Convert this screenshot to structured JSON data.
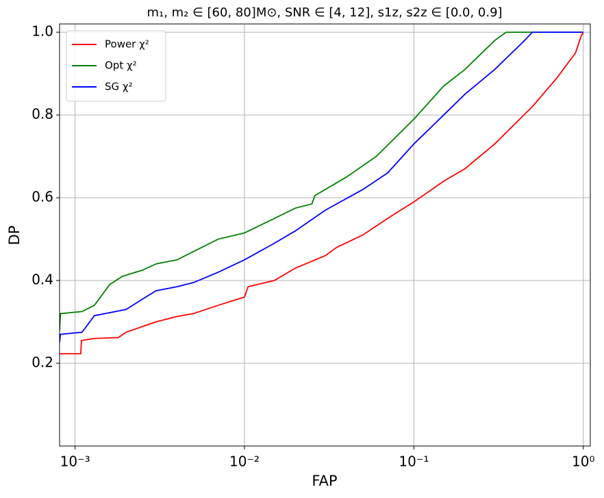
{
  "chart_data": {
    "type": "line",
    "title": "m₁, m₂ ∈ [60, 80]M⊙,  SNR ∈ [4, 12],  s1z, s2z ∈ [0.0, 0.9]",
    "x_label": "FAP",
    "y_label": "DP",
    "xscale": "log",
    "grid": true,
    "legend": "upper left",
    "xlim": [
      0.00081,
      1.1
    ],
    "ylim": [
      0,
      1.02
    ],
    "xticks": [
      {
        "value": 0.001,
        "label": "10⁻³"
      },
      {
        "value": 0.01,
        "label": "10⁻²"
      },
      {
        "value": 0.1,
        "label": "10⁻¹"
      },
      {
        "value": 1,
        "label": "10⁰"
      }
    ],
    "yticks": [
      0.2,
      0.4,
      0.6,
      0.8,
      {
        "value": 1,
        "label": "1.0"
      }
    ],
    "series": [
      {
        "name": "Power χ²",
        "color": "#ff0000",
        "x": [
          0.00081,
          0.00108,
          0.00109,
          0.0013,
          0.0018,
          0.002,
          0.003,
          0.004,
          0.005,
          0.007,
          0.01,
          0.0105,
          0.015,
          0.02,
          0.03,
          0.035,
          0.05,
          0.07,
          0.1,
          0.15,
          0.2,
          0.3,
          0.5,
          0.7,
          0.9,
          0.97,
          1.0
        ],
        "values": [
          0.223,
          0.223,
          0.255,
          0.26,
          0.262,
          0.275,
          0.3,
          0.313,
          0.32,
          0.34,
          0.36,
          0.385,
          0.4,
          0.43,
          0.46,
          0.48,
          0.51,
          0.55,
          0.59,
          0.64,
          0.67,
          0.73,
          0.82,
          0.89,
          0.95,
          0.99,
          1.0
        ]
      },
      {
        "name": "Opt χ²",
        "color": "#008000",
        "x": [
          0.00081,
          0.00082,
          0.0011,
          0.0013,
          0.0016,
          0.0019,
          0.0025,
          0.003,
          0.004,
          0.005,
          0.007,
          0.01,
          0.015,
          0.02,
          0.025,
          0.026,
          0.04,
          0.06,
          0.1,
          0.15,
          0.2,
          0.3,
          0.35,
          1.0
        ],
        "values": [
          0.28,
          0.32,
          0.325,
          0.34,
          0.39,
          0.41,
          0.425,
          0.44,
          0.45,
          0.47,
          0.5,
          0.515,
          0.55,
          0.575,
          0.585,
          0.605,
          0.65,
          0.7,
          0.79,
          0.87,
          0.91,
          0.98,
          1.0,
          1.0
        ]
      },
      {
        "name": "SG χ²",
        "color": "#0000ff",
        "x": [
          0.00081,
          0.00082,
          0.0011,
          0.0013,
          0.002,
          0.0025,
          0.003,
          0.004,
          0.005,
          0.007,
          0.01,
          0.015,
          0.02,
          0.03,
          0.05,
          0.07,
          0.1,
          0.15,
          0.2,
          0.3,
          0.45,
          0.5,
          1.0
        ],
        "values": [
          0.25,
          0.27,
          0.275,
          0.315,
          0.33,
          0.355,
          0.375,
          0.385,
          0.395,
          0.42,
          0.45,
          0.49,
          0.52,
          0.57,
          0.62,
          0.66,
          0.73,
          0.8,
          0.85,
          0.91,
          0.98,
          1.0,
          1.0
        ]
      }
    ]
  }
}
